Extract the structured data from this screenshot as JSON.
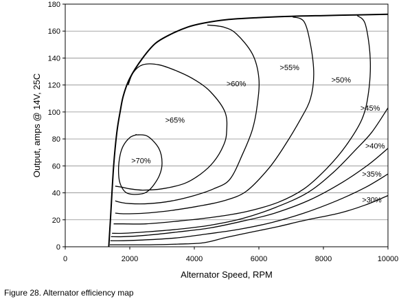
{
  "caption": "Figure 28. Alternator efficiency map",
  "chart_data": {
    "type": "line",
    "xlabel": "Alternator Speed, RPM",
    "ylabel": "Output, amps @ 14V, 25C",
    "xlim": [
      0,
      10000
    ],
    "ylim": [
      0,
      180
    ],
    "xticks": [
      0,
      2000,
      4000,
      6000,
      8000,
      10000
    ],
    "yticks": [
      0,
      20,
      40,
      60,
      80,
      100,
      120,
      140,
      160,
      180
    ],
    "grid": "horizontal",
    "line_color": "#000000",
    "envelope": {
      "x": [
        1350,
        1400,
        1500,
        1600,
        1700,
        1800,
        2000,
        2400,
        2800,
        3300,
        3800,
        4300,
        5000,
        6000,
        7000,
        8000,
        9000,
        10000
      ],
      "y": [
        0,
        20,
        60,
        85,
        100,
        112,
        125,
        140,
        151,
        158,
        163,
        166,
        168.5,
        170,
        171,
        171.5,
        172,
        172.5
      ]
    },
    "contours": [
      {
        "label": ">70%",
        "closed": true,
        "x": [
          2200,
          2550,
          2900,
          3000,
          2900,
          2600,
          2300,
          1900,
          1700,
          1650,
          1700,
          1800,
          2000,
          2200
        ],
        "y": [
          83,
          82,
          73,
          62,
          52,
          42,
          39,
          40,
          47,
          57,
          68,
          75,
          81,
          83
        ]
      },
      {
        "label": ">65%",
        "closed": false,
        "x": [
          1950,
          2100,
          2400,
          2900,
          3500,
          4000,
          4500,
          4950,
          5000,
          4900,
          4600,
          4200,
          3700,
          3000,
          2400,
          2000,
          1800,
          1550
        ],
        "y": [
          120,
          129,
          135,
          135,
          130,
          124,
          115,
          100,
          85,
          75,
          63,
          54,
          47,
          43,
          42,
          43,
          44,
          45
        ]
      },
      {
        "label": ">60%",
        "closed": false,
        "x": [
          4400,
          4900,
          5300,
          5800,
          6000,
          5950,
          5800,
          5500,
          5100,
          4600,
          4000,
          3300,
          2600,
          2000,
          1700,
          1550
        ],
        "y": [
          164.5,
          163,
          158,
          143,
          125,
          105,
          87,
          69,
          50,
          43,
          38,
          34,
          32,
          32,
          33,
          34
        ]
      },
      {
        "label": ">55%",
        "closed": false,
        "x": [
          7050,
          7400,
          7600,
          7700,
          7600,
          7300,
          6800,
          6300,
          5600,
          4900,
          4100,
          3300,
          2500,
          1800,
          1550
        ],
        "y": [
          170.5,
          167,
          150,
          128,
          110,
          95,
          75,
          58,
          41,
          34,
          30,
          27,
          25,
          24.5,
          25
        ]
      },
      {
        "label": ">50%",
        "closed": false,
        "x": [
          9050,
          9300,
          9450,
          9400,
          9200,
          8700,
          8100,
          7400,
          6600,
          5600,
          4600,
          3500,
          2500,
          1800,
          1500
        ],
        "y": [
          171.5,
          165,
          140,
          115,
          95,
          75,
          58,
          43,
          33,
          26,
          22,
          19,
          17,
          17,
          17
        ]
      },
      {
        "label": ">45%",
        "closed": false,
        "x": [
          10000,
          9500,
          9000,
          8300,
          7500,
          6500,
          5500,
          4500,
          3500,
          2500,
          1800,
          1450
        ],
        "y": [
          103,
          85,
          72,
          55,
          40,
          29,
          21,
          16,
          13,
          11,
          10,
          10
        ]
      },
      {
        "label": ">40%",
        "closed": false,
        "x": [
          10000,
          9400,
          8600,
          7600,
          6500,
          5500,
          4500,
          3500,
          2500,
          1800,
          1420
        ],
        "y": [
          73,
          61,
          48,
          35,
          25,
          19,
          14,
          11,
          8.5,
          7.5,
          7.5
        ]
      },
      {
        "label": ">35%",
        "closed": false,
        "x": [
          10000,
          9300,
          8400,
          7400,
          6400,
          5400,
          4400,
          3400,
          2400,
          1800,
          1400
        ],
        "y": [
          54,
          44,
          34,
          25,
          18,
          13,
          9.5,
          6.5,
          5,
          4.5,
          4.5
        ]
      },
      {
        "label": ">30%",
        "closed": false,
        "x": [
          10000,
          9300,
          8500,
          7500,
          6600,
          5800,
          5000,
          4300,
          3500,
          2600,
          1900,
          1380
        ],
        "y": [
          38,
          31,
          25,
          20,
          15,
          11,
          7,
          3,
          2,
          1.5,
          1.5,
          1.5
        ]
      }
    ],
    "annotations": [
      {
        "text": ">70%",
        "x": 2350,
        "y": 64
      },
      {
        "text": ">65%",
        "x": 3400,
        "y": 94
      },
      {
        "text": ">60%",
        "x": 5300,
        "y": 121
      },
      {
        "text": ">55%",
        "x": 6950,
        "y": 133
      },
      {
        "text": ">50%",
        "x": 8550,
        "y": 124
      },
      {
        "text": ">45%",
        "x": 9450,
        "y": 103
      },
      {
        "text": ">40%",
        "x": 9600,
        "y": 75
      },
      {
        "text": ">35%",
        "x": 9500,
        "y": 54
      },
      {
        "text": ">30%",
        "x": 9500,
        "y": 35
      }
    ]
  }
}
